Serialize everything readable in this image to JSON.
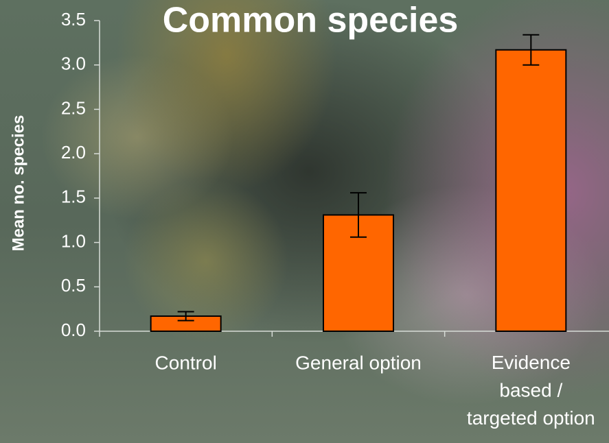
{
  "chart_data": {
    "type": "bar",
    "title": "Common species",
    "y_label": "Mean no. species",
    "categories": [
      "Control",
      "General option",
      "Evidence\nbased /\ntargeted option"
    ],
    "values": [
      0.17,
      1.31,
      3.17
    ],
    "errors": [
      0.05,
      0.25,
      0.17
    ],
    "color": "#ff6600",
    "ylim": [
      0,
      3.5
    ],
    "yticks": [
      {
        "value": 0,
        "label": "0.0"
      },
      0.5,
      {
        "value": 1,
        "label": "1.0"
      },
      1.5,
      {
        "value": 2,
        "label": "2.0"
      },
      2.5,
      {
        "value": 3,
        "label": "3.0"
      },
      3.5
    ]
  }
}
